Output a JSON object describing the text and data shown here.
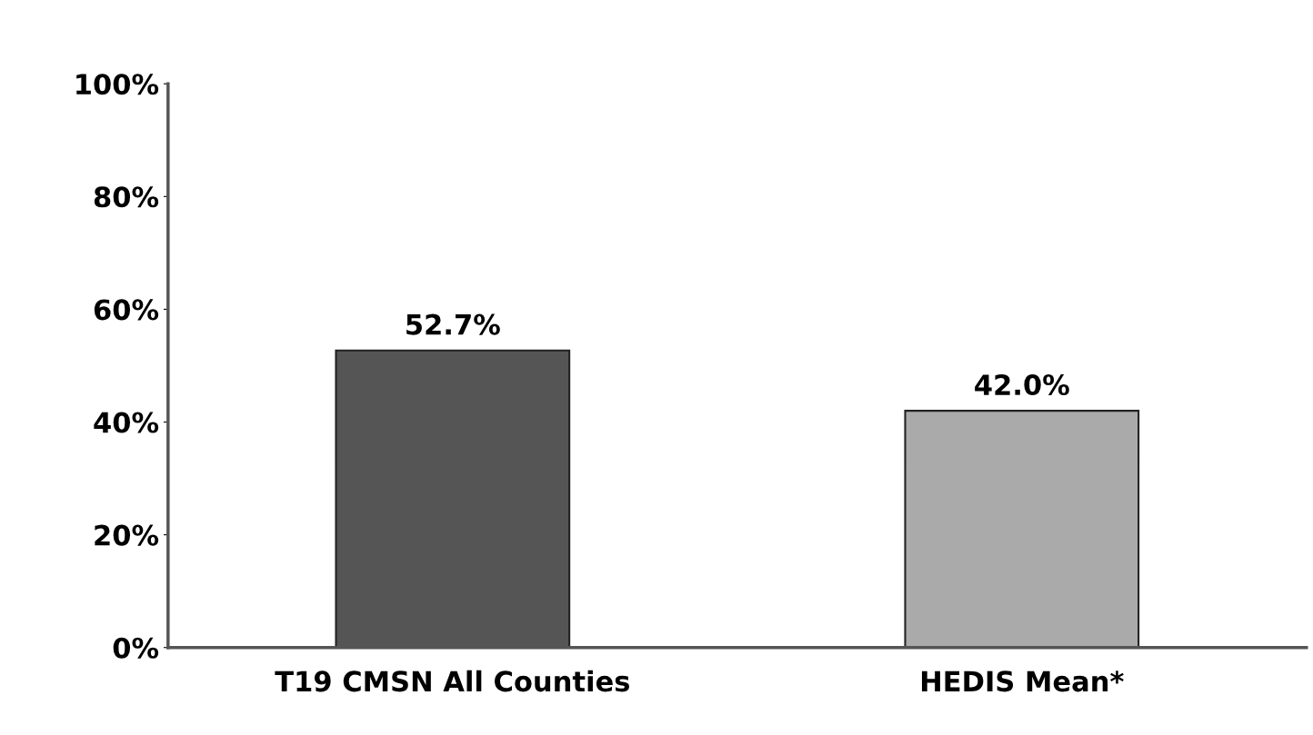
{
  "chart_data": {
    "type": "bar",
    "categories": [
      "T19 CMSN All Counties",
      "HEDIS Mean*"
    ],
    "values": [
      52.7,
      42.0
    ],
    "colors": [
      "#555555",
      "#aaaaaa"
    ],
    "value_labels": [
      "52.7%",
      "42.0%"
    ],
    "ylim": [
      0,
      100
    ],
    "yticks": [
      {
        "value": 0,
        "label": "0%"
      },
      {
        "value": 20,
        "label": "20%"
      },
      {
        "value": 40,
        "label": "40%"
      },
      {
        "value": 60,
        "label": "60%"
      },
      {
        "value": 80,
        "label": "80%"
      },
      {
        "value": 100,
        "label": "100%"
      }
    ],
    "grid": false,
    "legend": false
  }
}
